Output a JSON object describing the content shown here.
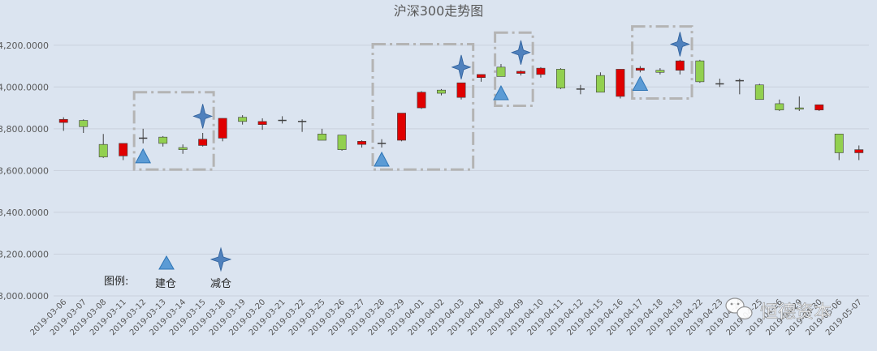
{
  "chart_data": {
    "type": "candlestick",
    "title": "沪深300走势图",
    "ylim": [
      3000,
      4300
    ],
    "yticks": [
      3000,
      3200,
      3400,
      3600,
      3800,
      4000,
      4200
    ],
    "ytick_labels": [
      "3,000.0000",
      "3,200.0000",
      "3,400.0000",
      "3,600.0000",
      "3,800.0000",
      "4,000.0000",
      "4,200.0000"
    ],
    "grid": true,
    "up_color": "#e00000",
    "down_color": "#92d050",
    "doji_color": "#404040",
    "categories": [
      "2019-03-06",
      "2019-03-07",
      "2019-03-08",
      "2019-03-11",
      "2019-03-12",
      "2019-03-13",
      "2019-03-14",
      "2019-03-15",
      "2019-03-18",
      "2019-03-19",
      "2019-03-20",
      "2019-03-21",
      "2019-03-22",
      "2019-03-25",
      "2019-03-26",
      "2019-03-27",
      "2019-03-28",
      "2019-03-29",
      "2019-04-01",
      "2019-04-02",
      "2019-04-03",
      "2019-04-04",
      "2019-04-08",
      "2019-04-09",
      "2019-04-10",
      "2019-04-11",
      "2019-04-12",
      "2019-04-15",
      "2019-04-16",
      "2019-04-17",
      "2019-04-18",
      "2019-04-19",
      "2019-04-22",
      "2019-04-23",
      "2019-04-24",
      "2019-04-25",
      "2019-04-26",
      "2019-04-29",
      "2019-04-30",
      "2019-05-06",
      "2019-05-07"
    ],
    "ohlc": [
      [
        3830,
        3855,
        3790,
        3845
      ],
      [
        3840,
        3845,
        3780,
        3810
      ],
      [
        3725,
        3775,
        3660,
        3665
      ],
      [
        3670,
        3730,
        3650,
        3730
      ],
      [
        3755,
        3800,
        3730,
        3755
      ],
      [
        3760,
        3765,
        3715,
        3730
      ],
      [
        3710,
        3725,
        3680,
        3700
      ],
      [
        3720,
        3780,
        3715,
        3750
      ],
      [
        3755,
        3850,
        3740,
        3850
      ],
      [
        3855,
        3865,
        3820,
        3835
      ],
      [
        3820,
        3850,
        3795,
        3835
      ],
      [
        3840,
        3860,
        3825,
        3840
      ],
      [
        3835,
        3845,
        3785,
        3835
      ],
      [
        3775,
        3800,
        3745,
        3745
      ],
      [
        3770,
        3770,
        3695,
        3700
      ],
      [
        3725,
        3745,
        3710,
        3740
      ],
      [
        3730,
        3750,
        3710,
        3730
      ],
      [
        3745,
        3875,
        3740,
        3875
      ],
      [
        3900,
        3980,
        3895,
        3975
      ],
      [
        3985,
        3990,
        3960,
        3970
      ],
      [
        3950,
        4020,
        3940,
        4020
      ],
      [
        4045,
        4060,
        4025,
        4060
      ],
      [
        4095,
        4110,
        4050,
        4050
      ],
      [
        4065,
        4080,
        4055,
        4075
      ],
      [
        4060,
        4095,
        4045,
        4090
      ],
      [
        4085,
        4090,
        3990,
        3995
      ],
      [
        3990,
        4010,
        3965,
        3990
      ],
      [
        4055,
        4070,
        3975,
        3975
      ],
      [
        3955,
        4085,
        3945,
        4085
      ],
      [
        4080,
        4100,
        4070,
        4090
      ],
      [
        4080,
        4090,
        4060,
        4070
      ],
      [
        4080,
        4130,
        4060,
        4125
      ],
      [
        4125,
        4130,
        4020,
        4025
      ],
      [
        4015,
        4040,
        4000,
        4015
      ],
      [
        4030,
        4040,
        3965,
        4030
      ],
      [
        4010,
        4015,
        3940,
        3940
      ],
      [
        3920,
        3940,
        3885,
        3890
      ],
      [
        3900,
        3955,
        3885,
        3895
      ],
      [
        3890,
        3915,
        3885,
        3915
      ],
      [
        3775,
        3775,
        3650,
        3685
      ],
      [
        3685,
        3720,
        3650,
        3700
      ]
    ],
    "annotations": [
      {
        "type": "建仓",
        "date_index": 4,
        "y": 3668
      },
      {
        "type": "减仓",
        "date_index": 7,
        "y": 3860
      },
      {
        "type": "建仓",
        "date_index": 16,
        "y": 3652
      },
      {
        "type": "减仓",
        "date_index": 20,
        "y": 4095
      },
      {
        "type": "建仓",
        "date_index": 22,
        "y": 3970
      },
      {
        "type": "减仓",
        "date_index": 23,
        "y": 4165
      },
      {
        "type": "建仓",
        "date_index": 29,
        "y": 4015
      },
      {
        "type": "减仓",
        "date_index": 31,
        "y": 4205
      }
    ],
    "highlight_boxes": [
      {
        "from_index": 3.55,
        "to_index": 7.55,
        "ymin": 3605,
        "ymax": 3975
      },
      {
        "from_index": 15.55,
        "to_index": 20.6,
        "ymin": 3605,
        "ymax": 4205
      },
      {
        "from_index": 21.7,
        "to_index": 23.6,
        "ymin": 3910,
        "ymax": 4260
      },
      {
        "from_index": 28.6,
        "to_index": 31.6,
        "ymin": 3945,
        "ymax": 4290
      }
    ],
    "legend": {
      "title": "图例:",
      "items": [
        {
          "label": "建仓",
          "marker": "triangle",
          "color": "#5b9bd5"
        },
        {
          "label": "减仓",
          "marker": "star4",
          "color": "#4f81bd"
        }
      ]
    }
  },
  "watermark": {
    "icon": "wechat-icon",
    "text": "恒德资本"
  }
}
